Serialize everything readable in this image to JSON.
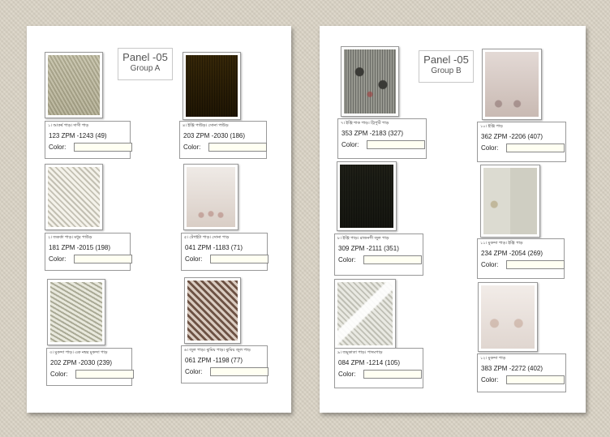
{
  "group_a": {
    "panel_title": "Panel -05",
    "group_label": "Group A",
    "cards": [
      {
        "label": "১। আকর্ষ পাড়। দাসী পাড়",
        "code": "123 ZPM -1243 (49)",
        "color_label": "Color:",
        "color_value": "",
        "texture": "t1"
      },
      {
        "label": "৪। ইঞ্জি পাউড়। সোনা পাউড়",
        "code": "203 ZPM -2030 (186)",
        "color_label": "Color:",
        "color_value": "",
        "texture": "t2"
      },
      {
        "label": "২। জকর্কা পাড়। মধুর পাউড়",
        "code": "181 ZPM -2015 (198)",
        "color_label": "Color:",
        "color_value": "",
        "texture": "t3"
      },
      {
        "label": "৫। টেপইটা পাড়। সোনা পাড়",
        "code": "041 ZPM -1183 (71)",
        "color_label": "Color:",
        "color_value": "",
        "texture": "t4"
      },
      {
        "label": "৩। মুকন্দা পাড়। এক নম্বর মুকন্দা পাড়",
        "code": "202 ZPM -2030 (239)",
        "color_label": "Color:",
        "color_value": "",
        "texture": "t5"
      },
      {
        "label": "৬। জুল পাড়। ঝুমিয় পাড়। ঝুমিয় জুল পাড়",
        "code": "061 ZPM -1198 (77)",
        "color_label": "Color:",
        "color_value": "",
        "texture": "t6"
      }
    ]
  },
  "group_b": {
    "panel_title": "Panel -05",
    "group_label": "Group B",
    "cards": [
      {
        "label": "৭। ইঞ্জি শাক পাড়। ট্রিপুটি পাড়",
        "code": "353 ZPM -2183 (327)",
        "color_label": "Color:",
        "color_value": "",
        "texture": "t7"
      },
      {
        "label": "১০। ইঞ্জি পাড়",
        "code": "362 ZPM -2206 (407)",
        "color_label": "Color:",
        "color_value": "",
        "texture": "t8"
      },
      {
        "label": "৮। ইঞ্জি পাড়। রাজনগী জুল পাড়",
        "code": "309 ZPM -2111 (351)",
        "color_label": "Color:",
        "color_value": "",
        "texture": "t9"
      },
      {
        "label": "১১। মুকন্দা পাড়। ইঞ্জি পাড়",
        "code": "234 ZPM -2054 (269)",
        "color_label": "Color:",
        "color_value": "",
        "texture": "t10"
      },
      {
        "label": "৯। জমুকাতা পাড়। পাদমপাড়",
        "code": "084 ZPM -1214 (105)",
        "color_label": "Color:",
        "color_value": "",
        "texture": "t11"
      },
      {
        "label": "১২। মুকন্দা পাড়",
        "code": "383 ZPM -2272 (402)",
        "color_label": "Color:",
        "color_value": "",
        "texture": "t12"
      }
    ]
  }
}
